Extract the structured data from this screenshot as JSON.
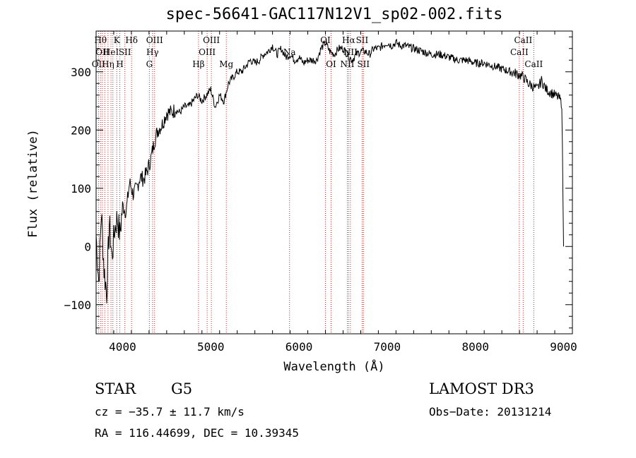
{
  "chart_data": {
    "type": "line",
    "title": "spec-56641-GAC117N12V1_sp02-002.fits",
    "xlabel": "Wavelength (Å)",
    "ylabel": "Flux (relative)",
    "xlim": [
      3700,
      9100
    ],
    "ylim": [
      -150,
      370
    ],
    "xticks": [
      4000,
      5000,
      6000,
      7000,
      8000,
      9000
    ],
    "yticks": [
      -100,
      0,
      100,
      200,
      300
    ],
    "grid": false,
    "series": [
      {
        "name": "flux",
        "x": [
          3700,
          3730,
          3760,
          3790,
          3820,
          3850,
          3880,
          3910,
          3940,
          3970,
          4000,
          4040,
          4080,
          4120,
          4160,
          4200,
          4240,
          4280,
          4320,
          4360,
          4400,
          4450,
          4500,
          4550,
          4600,
          4650,
          4700,
          4750,
          4800,
          4850,
          4900,
          4950,
          5000,
          5050,
          5100,
          5150,
          5200,
          5250,
          5300,
          5350,
          5400,
          5450,
          5500,
          5550,
          5600,
          5650,
          5700,
          5750,
          5800,
          5850,
          5900,
          5950,
          6000,
          6050,
          6100,
          6150,
          6200,
          6250,
          6300,
          6350,
          6400,
          6450,
          6500,
          6550,
          6600,
          6650,
          6700,
          6750,
          6800,
          6850,
          6900,
          6950,
          7000,
          7050,
          7100,
          7150,
          7200,
          7300,
          7400,
          7500,
          7600,
          7700,
          7800,
          7900,
          8000,
          8100,
          8200,
          8300,
          8400,
          8500,
          8550,
          8600,
          8650,
          8700,
          8750,
          8800,
          8850,
          8900,
          8950,
          8980,
          9000
        ],
        "y": [
          20,
          -60,
          60,
          -40,
          -80,
          40,
          -20,
          30,
          50,
          20,
          70,
          60,
          110,
          90,
          100,
          120,
          115,
          130,
          150,
          180,
          200,
          210,
          230,
          230,
          235,
          230,
          240,
          240,
          250,
          260,
          250,
          260,
          270,
          240,
          260,
          250,
          280,
          290,
          300,
          300,
          310,
          320,
          315,
          320,
          330,
          335,
          345,
          330,
          340,
          325,
          330,
          320,
          325,
          315,
          320,
          320,
          320,
          340,
          350,
          335,
          330,
          340,
          340,
          330,
          320,
          330,
          335,
          335,
          330,
          340,
          340,
          345,
          350,
          345,
          350,
          345,
          345,
          340,
          335,
          330,
          330,
          325,
          320,
          320,
          315,
          315,
          310,
          305,
          300,
          295,
          290,
          280,
          275,
          270,
          285,
          270,
          265,
          260,
          255,
          245,
          0
        ]
      }
    ],
    "lines": [
      {
        "x": 3727,
        "label": "OII",
        "row": 3
      },
      {
        "x": 3750,
        "label": "Hθ",
        "row": 1
      },
      {
        "x": 3771,
        "label": "OII",
        "row": 2
      },
      {
        "x": 3798,
        "label": "",
        "row": 0
      },
      {
        "x": 3835,
        "label": "Hη",
        "row": 3
      },
      {
        "x": 3869,
        "label": "HeI",
        "row": 2
      },
      {
        "x": 3890,
        "label": "",
        "row": 0
      },
      {
        "x": 3934,
        "label": "K",
        "row": 1
      },
      {
        "x": 3969,
        "label": "H",
        "row": 3
      },
      {
        "x": 4026,
        "label": "SII",
        "row": 2
      },
      {
        "x": 4102,
        "label": "Hδ",
        "row": 1
      },
      {
        "x": 4304,
        "label": "G",
        "row": 3
      },
      {
        "x": 4340,
        "label": "Hγ",
        "row": 2
      },
      {
        "x": 4363,
        "label": "OIII",
        "row": 1
      },
      {
        "x": 4861,
        "label": "Hβ",
        "row": 3
      },
      {
        "x": 4959,
        "label": "OIII",
        "row": 2
      },
      {
        "x": 5007,
        "label": "OIII",
        "row": 1
      },
      {
        "x": 5176,
        "label": "Mg",
        "row": 3
      },
      {
        "x": 5893,
        "label": "Na",
        "row": 2
      },
      {
        "x": 6300,
        "label": "OI",
        "row": 1
      },
      {
        "x": 6364,
        "label": "OI",
        "row": 3
      },
      {
        "x": 6548,
        "label": "NII",
        "row": 3
      },
      {
        "x": 6563,
        "label": "Hα",
        "row": 1
      },
      {
        "x": 6583,
        "label": "NII",
        "row": 2
      },
      {
        "x": 6716,
        "label": "SII",
        "row": 1
      },
      {
        "x": 6731,
        "label": "SII",
        "row": 3
      },
      {
        "x": 8498,
        "label": "CaII",
        "row": 2
      },
      {
        "x": 8542,
        "label": "CaII",
        "row": 1
      },
      {
        "x": 8662,
        "label": "CaII",
        "row": 3
      }
    ]
  },
  "info": {
    "class_label": "STAR",
    "subclass": "G5",
    "survey": "LAMOST DR3",
    "cz": "cz = −35.7 ± 11.7 km/s",
    "obs_date": "Obs−Date: 20131214",
    "coords": "RA = 116.44699, DEC =  10.39345"
  }
}
